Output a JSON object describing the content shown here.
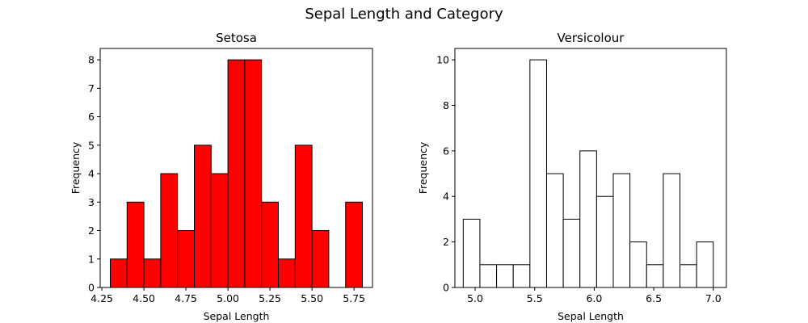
{
  "figure": {
    "suptitle": "Sepal Length and Category"
  },
  "chart_data": [
    {
      "type": "bar",
      "histogram": true,
      "title": "Setosa",
      "xlabel": "Sepal Length",
      "ylabel": "Frequency",
      "xlim": [
        4.24,
        5.86
      ],
      "ylim": [
        0,
        8.4
      ],
      "xticks": [
        4.25,
        4.5,
        4.75,
        5.0,
        5.25,
        5.5,
        5.75
      ],
      "xtick_labels": [
        "4.25",
        "4.50",
        "4.75",
        "5.00",
        "5.25",
        "5.50",
        "5.75"
      ],
      "yticks": [
        0,
        1,
        2,
        3,
        4,
        5,
        6,
        7,
        8
      ],
      "ytick_labels": [
        "0",
        "1",
        "2",
        "3",
        "4",
        "5",
        "6",
        "7",
        "8"
      ],
      "bin_edges": [
        4.3,
        4.4,
        4.5,
        4.6,
        4.7,
        4.8,
        4.9,
        5.0,
        5.1,
        5.2,
        5.3,
        5.4,
        5.5,
        5.6,
        5.7,
        5.8
      ],
      "values": [
        1,
        3,
        1,
        4,
        2,
        5,
        4,
        8,
        8,
        3,
        1,
        5,
        2,
        0,
        3
      ],
      "bar_color": "#ff0000",
      "edge_color": "#000000",
      "grid": false
    },
    {
      "type": "bar",
      "histogram": true,
      "title": "Versicolour",
      "xlabel": "Sepal Length",
      "ylabel": "Frequency",
      "xlim": [
        4.83,
        7.11
      ],
      "ylim": [
        0,
        10.5
      ],
      "xticks": [
        5.0,
        5.5,
        6.0,
        6.5,
        7.0
      ],
      "xtick_labels": [
        "5.0",
        "5.5",
        "6.0",
        "6.5",
        "7.0"
      ],
      "yticks": [
        0,
        2,
        4,
        6,
        8,
        10
      ],
      "ytick_labels": [
        "0",
        "2",
        "4",
        "6",
        "8",
        "10"
      ],
      "bin_edges": [
        4.9,
        5.04,
        5.18,
        5.32,
        5.46,
        5.6,
        5.74,
        5.88,
        6.02,
        6.16,
        6.3,
        6.44,
        6.58,
        6.72,
        6.86,
        7.0
      ],
      "values": [
        3,
        1,
        1,
        1,
        10,
        5,
        3,
        6,
        4,
        5,
        2,
        1,
        5,
        1,
        2
      ],
      "bar_color": "#ffffff",
      "edge_color": "#000000",
      "grid": false
    }
  ]
}
